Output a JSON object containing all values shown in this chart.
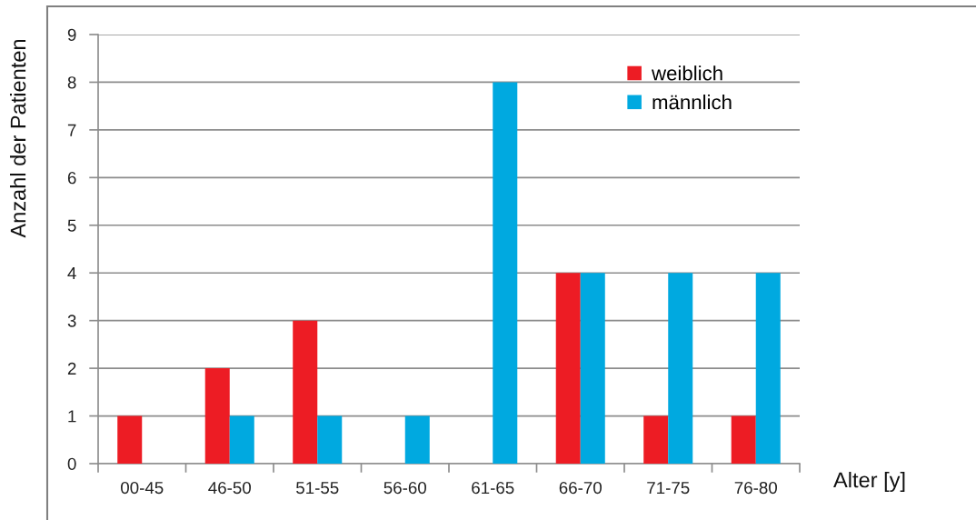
{
  "chart_data": {
    "type": "bar",
    "xlabel": "Alter [y]",
    "ylabel": "Anzahl der Patienten",
    "categories": [
      "00-45",
      "46-50",
      "51-55",
      "56-60",
      "61-65",
      "66-70",
      "71-75",
      "76-80"
    ],
    "series": [
      {
        "name": "weiblich",
        "color": "#ed1c24",
        "values": [
          1,
          2,
          3,
          0,
          0,
          4,
          1,
          1
        ]
      },
      {
        "name": "männlich",
        "color": "#00a9e0",
        "values": [
          0,
          1,
          1,
          1,
          8,
          4,
          4,
          4
        ]
      }
    ],
    "ylim": [
      0,
      9
    ],
    "yticks": [
      0,
      1,
      2,
      3,
      4,
      5,
      6,
      7,
      8,
      9
    ],
    "grid": "y",
    "legend": "top right"
  }
}
